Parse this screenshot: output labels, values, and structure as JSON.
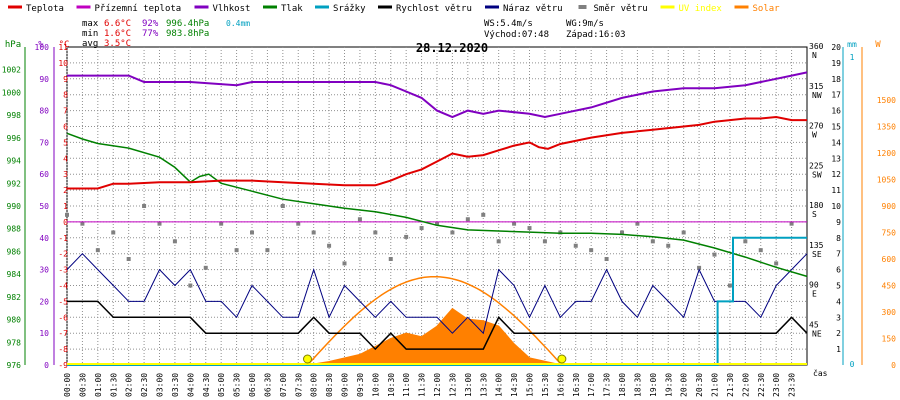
{
  "legend": [
    {
      "label": "Teplota",
      "color": "#e00000",
      "swatch": "line"
    },
    {
      "label": "Přízemní teplota",
      "color": "#c000c0",
      "swatch": "line"
    },
    {
      "label": "Vlhkost",
      "color": "#8000c0",
      "swatch": "line"
    },
    {
      "label": "Tlak",
      "color": "#008000",
      "swatch": "line"
    },
    {
      "label": "Srážky",
      "color": "#00a0c0",
      "swatch": "line"
    },
    {
      "label": "Rychlost větru",
      "color": "#000000",
      "swatch": "line"
    },
    {
      "label": "Náraz větru",
      "color": "#000080",
      "swatch": "line"
    },
    {
      "label": "Směr větru",
      "color": "#808080",
      "swatch": "dot"
    },
    {
      "label": "UV index",
      "color": "#ffff00",
      "swatch": "line"
    },
    {
      "label": "Solar",
      "color": "#ff8000",
      "swatch": "line"
    }
  ],
  "stats": {
    "max": {
      "label": "max",
      "temp": "6.6°C",
      "hum": "92%",
      "press": "996.4hPa",
      "rain": "0.4mm"
    },
    "min": {
      "label": "min",
      "temp": "1.6°C",
      "hum": "77%",
      "press": "983.8hPa"
    },
    "avg": {
      "label": "avg",
      "temp": "3.5°C"
    }
  },
  "wind": {
    "ws": "WS:5.4m/s",
    "wg": "WG:9m/s",
    "sunrise": "Východ:07:48",
    "sunset": "Západ:16:03"
  },
  "colors": {
    "temp": "#e00000",
    "ground": "#c000c0",
    "hum": "#8000c0",
    "press": "#008000",
    "rain": "#00a0c0",
    "wind": "#000000",
    "gust": "#000080",
    "dir": "#808080",
    "uv": "#ffff00",
    "solar": "#ff8000",
    "axis_hpa": "#008000",
    "axis_pct": "#8000c0",
    "axis_c": "#e00000",
    "axis_mm": "#00a0c0",
    "axis_w": "#ff8000",
    "grid": "#909090"
  },
  "chart_data": {
    "type": "line",
    "title": "28.12.2020",
    "x_unit": "čas",
    "x_ticks": [
      "00:00",
      "00:30",
      "01:00",
      "01:30",
      "02:00",
      "02:30",
      "03:00",
      "03:30",
      "04:00",
      "04:30",
      "05:00",
      "05:30",
      "06:00",
      "06:30",
      "07:00",
      "07:30",
      "08:00",
      "08:30",
      "09:00",
      "09:30",
      "10:00",
      "10:30",
      "11:00",
      "11:30",
      "12:00",
      "12:30",
      "13:00",
      "13:30",
      "14:00",
      "14:30",
      "15:00",
      "15:30",
      "16:00",
      "16:30",
      "17:00",
      "17:30",
      "18:00",
      "18:30",
      "19:00",
      "19:30",
      "20:00",
      "20:30",
      "21:00",
      "21:30",
      "22:00",
      "22:30",
      "23:00",
      "23:30"
    ],
    "axes": {
      "hpa": {
        "label": "hPa",
        "range": [
          976,
          1004
        ],
        "ticks": [
          "1002",
          "1000",
          "998",
          "996",
          "994",
          "992",
          "990",
          "988",
          "986",
          "984",
          "982",
          "980",
          "978",
          "976"
        ]
      },
      "pct": {
        "label": "%",
        "range": [
          0,
          100
        ],
        "ticks": [
          "100",
          "90",
          "80",
          "70",
          "60",
          "50",
          "40",
          "30",
          "20",
          "10",
          "0"
        ]
      },
      "celsius": {
        "label": "°C",
        "range": [
          -9,
          11
        ],
        "ticks": [
          "11",
          "10",
          "9",
          "8",
          "7",
          "6",
          "5",
          "4",
          "3",
          "2",
          "1",
          "0",
          "-1",
          "-2",
          "-3",
          "-4",
          "-5",
          "-6",
          "-7",
          "-8",
          "-9"
        ]
      },
      "dir": {
        "range": [
          0,
          360
        ],
        "ticks": [
          {
            "v": 360,
            "deg": "360",
            "name": "N"
          },
          {
            "v": 315,
            "deg": "315",
            "name": "NW"
          },
          {
            "v": 270,
            "deg": "270",
            "name": "W"
          },
          {
            "v": 225,
            "deg": "225",
            "name": "SW"
          },
          {
            "v": 180,
            "deg": "180",
            "name": "S"
          },
          {
            "v": 135,
            "deg": "135",
            "name": "SE"
          },
          {
            "v": 90,
            "deg": "90",
            "name": "E"
          },
          {
            "v": 45,
            "deg": "45",
            "name": "NE"
          }
        ]
      },
      "ms": {
        "range": [
          0,
          20
        ],
        "ticks": [
          "20",
          "19",
          "18",
          "17",
          "16",
          "15",
          "14",
          "13",
          "12",
          "11",
          "10",
          "9",
          "8",
          "7",
          "6",
          "5",
          "4",
          "3",
          "2",
          "1"
        ]
      },
      "mm": {
        "label": "mm",
        "range": [
          0,
          1
        ],
        "ticks": [
          "1",
          "0"
        ]
      },
      "w": {
        "label": "W",
        "range": [
          0,
          1800
        ],
        "ticks": [
          "1500",
          "1350",
          "1200",
          "1050",
          "900",
          "750",
          "600",
          "450",
          "300",
          "150",
          "0"
        ]
      }
    },
    "series": [
      {
        "name": "Teplota",
        "key": "temp",
        "axis": "celsius",
        "x": [
          0,
          1,
          1.5,
          2,
          3,
          4,
          5,
          6,
          7,
          8,
          9,
          9.5,
          10,
          10.5,
          11,
          11.5,
          12,
          12.5,
          13,
          13.5,
          14,
          14.5,
          15,
          15.3,
          15.6,
          16,
          17,
          18,
          19,
          20,
          20.5,
          21,
          21.5,
          22,
          22.5,
          23,
          23.5,
          24
        ],
        "y": [
          2.1,
          2.1,
          2.4,
          2.4,
          2.5,
          2.5,
          2.6,
          2.6,
          2.5,
          2.4,
          2.3,
          2.3,
          2.3,
          2.6,
          3.0,
          3.3,
          3.8,
          4.3,
          4.1,
          4.2,
          4.5,
          4.8,
          5.0,
          4.7,
          4.6,
          4.9,
          5.3,
          5.6,
          5.8,
          6.0,
          6.1,
          6.3,
          6.4,
          6.5,
          6.5,
          6.6,
          6.4,
          6.4
        ]
      },
      {
        "name": "Přízemní teplota",
        "key": "ground",
        "axis": "celsius",
        "x": [
          0,
          24
        ],
        "y": [
          0,
          0
        ]
      },
      {
        "name": "Vlhkost",
        "key": "hum",
        "axis": "pct",
        "x": [
          0,
          2,
          2.5,
          4,
          5.5,
          6,
          8,
          10,
          10.5,
          11,
          11.5,
          12,
          12.5,
          13,
          13.5,
          14,
          15,
          15.5,
          16,
          17,
          18,
          19,
          20,
          21,
          22,
          22.5,
          23,
          23.5,
          24
        ],
        "y": [
          91,
          91,
          89,
          89,
          88,
          89,
          89,
          89,
          88,
          86,
          84,
          80,
          78,
          80,
          79,
          80,
          79,
          78,
          79,
          81,
          84,
          86,
          87,
          87,
          88,
          89,
          90,
          91,
          92
        ]
      },
      {
        "name": "Tlak",
        "key": "press",
        "axis": "hpa",
        "x": [
          0,
          0.5,
          1,
          2,
          3,
          3.5,
          4,
          4.3,
          4.6,
          5,
          6,
          7,
          8,
          9,
          10,
          11,
          12,
          13,
          14,
          15,
          16,
          17,
          18,
          19,
          20,
          21,
          22,
          23,
          24
        ],
        "y": [
          996.4,
          995.9,
          995.5,
          995.1,
          994.3,
          993.4,
          992.1,
          992.6,
          992.8,
          992.0,
          991.3,
          990.6,
          990.2,
          989.8,
          989.5,
          989.0,
          988.3,
          987.9,
          987.8,
          987.7,
          987.6,
          987.6,
          987.5,
          987.3,
          987.0,
          986.3,
          985.5,
          984.6,
          983.8
        ]
      },
      {
        "name": "Srážky",
        "key": "rain",
        "axis": "mm",
        "x": [
          0,
          21.1,
          21.1,
          21.6,
          21.6,
          24
        ],
        "y": [
          0,
          0,
          0.2,
          0.2,
          0.4,
          0.4
        ]
      },
      {
        "name": "Rychlost větru",
        "key": "wind",
        "axis": "ms",
        "x": [
          0,
          0.5,
          1,
          1.5,
          2,
          2.5,
          3,
          3.5,
          4,
          4.5,
          5,
          5.5,
          6,
          6.5,
          7,
          7.5,
          8,
          8.5,
          9,
          9.5,
          10,
          10.5,
          11,
          11.5,
          12,
          12.5,
          13,
          13.5,
          14,
          14.5,
          15,
          15.5,
          16,
          16.5,
          17,
          17.5,
          18,
          18.5,
          19,
          19.5,
          20,
          20.5,
          21,
          21.5,
          22,
          22.5,
          23,
          23.5,
          24
        ],
        "y": [
          4,
          4,
          4,
          3,
          3,
          3,
          3,
          3,
          3,
          2,
          2,
          2,
          2,
          2,
          2,
          2,
          3,
          2,
          2,
          2,
          1,
          2,
          1,
          1,
          1,
          1,
          1,
          1,
          3,
          2,
          2,
          2,
          2,
          2,
          2,
          2,
          2,
          2,
          2,
          2,
          2,
          2,
          2,
          2,
          2,
          2,
          2,
          3,
          2
        ]
      },
      {
        "name": "Náraz větru",
        "key": "gust",
        "axis": "ms",
        "x": [
          0,
          0.5,
          1,
          1.5,
          2,
          2.5,
          3,
          3.5,
          4,
          4.5,
          5,
          5.5,
          6,
          6.5,
          7,
          7.5,
          8,
          8.5,
          9,
          9.5,
          10,
          10.5,
          11,
          11.5,
          12,
          12.5,
          13,
          13.5,
          14,
          14.5,
          15,
          15.5,
          16,
          16.5,
          17,
          17.5,
          18,
          18.5,
          19,
          19.5,
          20,
          20.5,
          21,
          21.5,
          22,
          22.5,
          23,
          23.5,
          24
        ],
        "y": [
          6,
          7,
          6,
          5,
          4,
          4,
          6,
          5,
          6,
          4,
          4,
          3,
          5,
          4,
          3,
          3,
          6,
          3,
          5,
          4,
          3,
          4,
          3,
          3,
          3,
          2,
          3,
          2,
          6,
          5,
          3,
          5,
          3,
          4,
          4,
          6,
          4,
          3,
          5,
          4,
          3,
          6,
          4,
          4,
          4,
          3,
          5,
          6,
          7
        ]
      },
      {
        "name": "Směr větru",
        "key": "dir",
        "axis": "dir",
        "x": [
          0,
          0.5,
          1,
          1.5,
          2,
          2.5,
          3,
          3.5,
          4,
          4.5,
          5,
          5.5,
          6,
          6.5,
          7,
          7.5,
          8,
          8.5,
          9,
          9.5,
          10,
          10.5,
          11,
          11.5,
          12,
          12.5,
          13,
          13.5,
          14,
          14.5,
          15,
          15.5,
          16,
          16.5,
          17,
          17.5,
          18,
          18.5,
          19,
          19.5,
          20,
          20.5,
          21,
          21.5,
          22,
          22.5,
          23,
          23.5
        ],
        "y": [
          170,
          160,
          130,
          150,
          120,
          180,
          160,
          140,
          90,
          110,
          160,
          130,
          150,
          130,
          180,
          160,
          150,
          135,
          115,
          165,
          150,
          120,
          145,
          155,
          160,
          150,
          165,
          170,
          140,
          160,
          155,
          140,
          150,
          135,
          130,
          120,
          150,
          160,
          140,
          135,
          150,
          110,
          125,
          90,
          140,
          130,
          115,
          160
        ]
      },
      {
        "name": "UV index",
        "key": "uv",
        "axis": "w",
        "x": [
          0,
          24
        ],
        "y": [
          0,
          0
        ]
      },
      {
        "name": "Solar",
        "key": "solar",
        "axis": "w",
        "x": [
          7.8,
          8.5,
          9.5,
          10.5,
          11,
          11.5,
          12,
          12.5,
          13,
          13.5,
          14,
          14.5,
          15,
          16.05
        ],
        "y": [
          0,
          20,
          60,
          150,
          180,
          160,
          220,
          320,
          260,
          250,
          220,
          120,
          40,
          0
        ]
      }
    ],
    "solar_theoretical": {
      "peak_hour": 11.93,
      "peak": 500
    }
  }
}
